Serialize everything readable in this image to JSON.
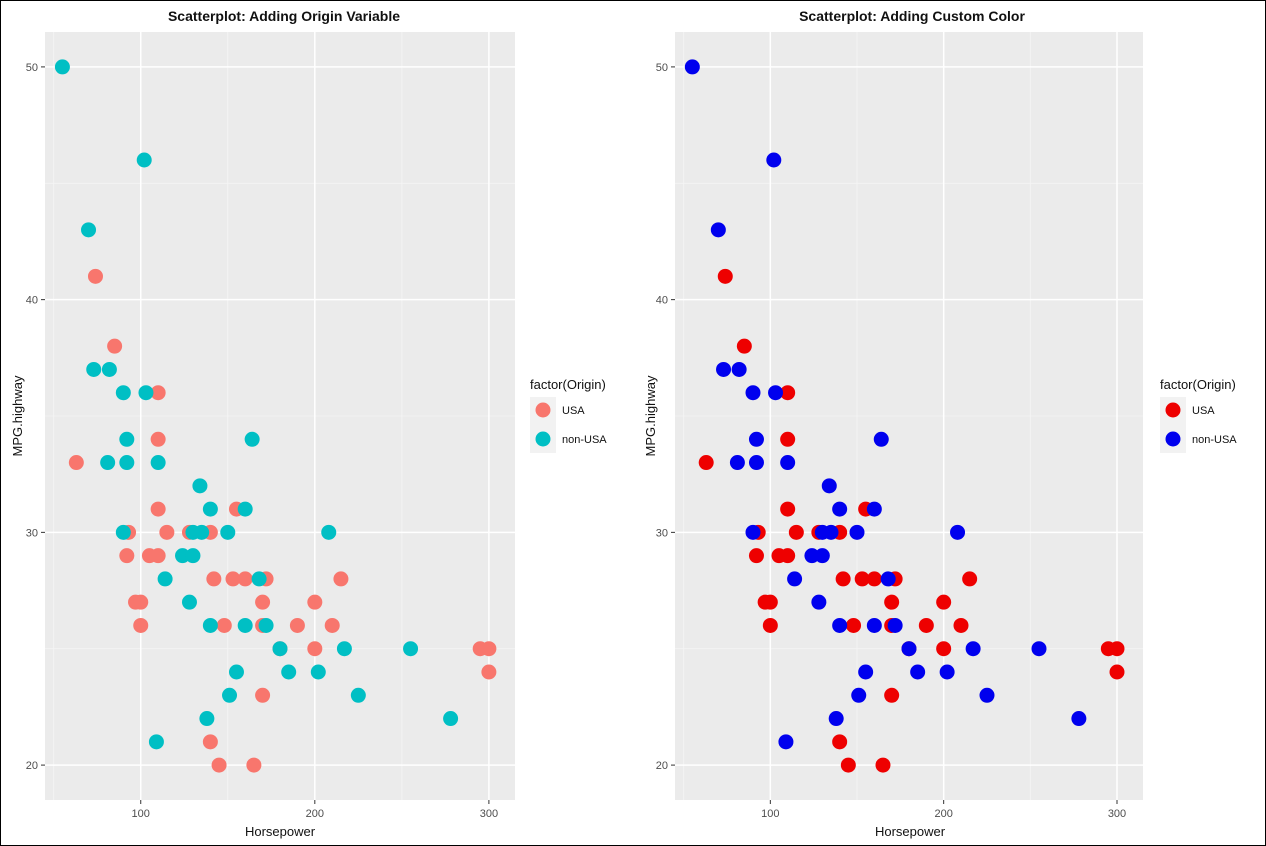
{
  "chart_data": [
    {
      "type": "scatter",
      "title": "Scatterplot: Adding Origin Variable",
      "xlabel": "Horsepower",
      "ylabel": "MPG.highway",
      "xlim": [
        45,
        315
      ],
      "ylim": [
        18.5,
        51.5
      ],
      "xticks": [
        100,
        200,
        300
      ],
      "yticks": [
        20,
        30,
        40,
        50
      ],
      "grid": true,
      "legend": {
        "title": "factor(Origin)",
        "position": "right",
        "items": [
          {
            "label": "USA",
            "color": "#F8766D"
          },
          {
            "label": "non-USA",
            "color": "#00BFC4"
          }
        ]
      },
      "series": [
        {
          "name": "USA",
          "color": "#F8766D",
          "points": [
            [
              74,
              41
            ],
            [
              85,
              38
            ],
            [
              110,
              36
            ],
            [
              63,
              33
            ],
            [
              110,
              34
            ],
            [
              110,
              31
            ],
            [
              155,
              31
            ],
            [
              93,
              30
            ],
            [
              115,
              30
            ],
            [
              128,
              30
            ],
            [
              140,
              30
            ],
            [
              92,
              29
            ],
            [
              105,
              29
            ],
            [
              110,
              29
            ],
            [
              97,
              27
            ],
            [
              100,
              27
            ],
            [
              170,
              27
            ],
            [
              200,
              27
            ],
            [
              100,
              26
            ],
            [
              142,
              28
            ],
            [
              153,
              28
            ],
            [
              160,
              28
            ],
            [
              172,
              28
            ],
            [
              215,
              28
            ],
            [
              148,
              26
            ],
            [
              170,
              26
            ],
            [
              190,
              26
            ],
            [
              210,
              26
            ],
            [
              180,
              25
            ],
            [
              200,
              25
            ],
            [
              295,
              25
            ],
            [
              300,
              25
            ],
            [
              300,
              24
            ],
            [
              170,
              23
            ],
            [
              140,
              21
            ],
            [
              145,
              20
            ],
            [
              165,
              20
            ]
          ]
        },
        {
          "name": "non-USA",
          "color": "#00BFC4",
          "points": [
            [
              55,
              50
            ],
            [
              102,
              46
            ],
            [
              70,
              43
            ],
            [
              73,
              37
            ],
            [
              82,
              37
            ],
            [
              90,
              36
            ],
            [
              103,
              36
            ],
            [
              92,
              34
            ],
            [
              164,
              34
            ],
            [
              81,
              33
            ],
            [
              92,
              33
            ],
            [
              110,
              33
            ],
            [
              134,
              32
            ],
            [
              140,
              31
            ],
            [
              160,
              31
            ],
            [
              90,
              30
            ],
            [
              130,
              30
            ],
            [
              135,
              30
            ],
            [
              150,
              30
            ],
            [
              208,
              30
            ],
            [
              124,
              29
            ],
            [
              130,
              29
            ],
            [
              114,
              28
            ],
            [
              168,
              28
            ],
            [
              128,
              27
            ],
            [
              140,
              26
            ],
            [
              160,
              26
            ],
            [
              172,
              26
            ],
            [
              180,
              25
            ],
            [
              217,
              25
            ],
            [
              255,
              25
            ],
            [
              155,
              24
            ],
            [
              185,
              24
            ],
            [
              202,
              24
            ],
            [
              151,
              23
            ],
            [
              225,
              23
            ],
            [
              138,
              22
            ],
            [
              278,
              22
            ],
            [
              109,
              21
            ]
          ]
        }
      ]
    },
    {
      "type": "scatter",
      "title": "Scatterplot: Adding Custom Color",
      "xlabel": "Horsepower",
      "ylabel": "MPG.highway",
      "xlim": [
        45,
        315
      ],
      "ylim": [
        18.5,
        51.5
      ],
      "xticks": [
        100,
        200,
        300
      ],
      "yticks": [
        20,
        30,
        40,
        50
      ],
      "grid": true,
      "legend": {
        "title": "factor(Origin)",
        "position": "right",
        "items": [
          {
            "label": "USA",
            "color": "#EE0000"
          },
          {
            "label": "non-USA",
            "color": "#0000EE"
          }
        ]
      },
      "series": [
        {
          "name": "USA",
          "color": "#EE0000",
          "points": [
            [
              74,
              41
            ],
            [
              85,
              38
            ],
            [
              110,
              36
            ],
            [
              63,
              33
            ],
            [
              110,
              34
            ],
            [
              110,
              31
            ],
            [
              155,
              31
            ],
            [
              93,
              30
            ],
            [
              115,
              30
            ],
            [
              128,
              30
            ],
            [
              140,
              30
            ],
            [
              92,
              29
            ],
            [
              105,
              29
            ],
            [
              110,
              29
            ],
            [
              97,
              27
            ],
            [
              100,
              27
            ],
            [
              170,
              27
            ],
            [
              200,
              27
            ],
            [
              100,
              26
            ],
            [
              142,
              28
            ],
            [
              153,
              28
            ],
            [
              160,
              28
            ],
            [
              172,
              28
            ],
            [
              215,
              28
            ],
            [
              148,
              26
            ],
            [
              170,
              26
            ],
            [
              190,
              26
            ],
            [
              210,
              26
            ],
            [
              180,
              25
            ],
            [
              200,
              25
            ],
            [
              295,
              25
            ],
            [
              300,
              25
            ],
            [
              300,
              24
            ],
            [
              170,
              23
            ],
            [
              140,
              21
            ],
            [
              145,
              20
            ],
            [
              165,
              20
            ]
          ]
        },
        {
          "name": "non-USA",
          "color": "#0000EE",
          "points": [
            [
              55,
              50
            ],
            [
              102,
              46
            ],
            [
              70,
              43
            ],
            [
              73,
              37
            ],
            [
              82,
              37
            ],
            [
              90,
              36
            ],
            [
              103,
              36
            ],
            [
              92,
              34
            ],
            [
              164,
              34
            ],
            [
              81,
              33
            ],
            [
              92,
              33
            ],
            [
              110,
              33
            ],
            [
              134,
              32
            ],
            [
              140,
              31
            ],
            [
              160,
              31
            ],
            [
              90,
              30
            ],
            [
              130,
              30
            ],
            [
              135,
              30
            ],
            [
              150,
              30
            ],
            [
              208,
              30
            ],
            [
              124,
              29
            ],
            [
              130,
              29
            ],
            [
              114,
              28
            ],
            [
              168,
              28
            ],
            [
              128,
              27
            ],
            [
              140,
              26
            ],
            [
              160,
              26
            ],
            [
              172,
              26
            ],
            [
              180,
              25
            ],
            [
              217,
              25
            ],
            [
              255,
              25
            ],
            [
              155,
              24
            ],
            [
              185,
              24
            ],
            [
              202,
              24
            ],
            [
              151,
              23
            ],
            [
              225,
              23
            ],
            [
              138,
              22
            ],
            [
              278,
              22
            ],
            [
              109,
              21
            ]
          ]
        }
      ]
    }
  ]
}
